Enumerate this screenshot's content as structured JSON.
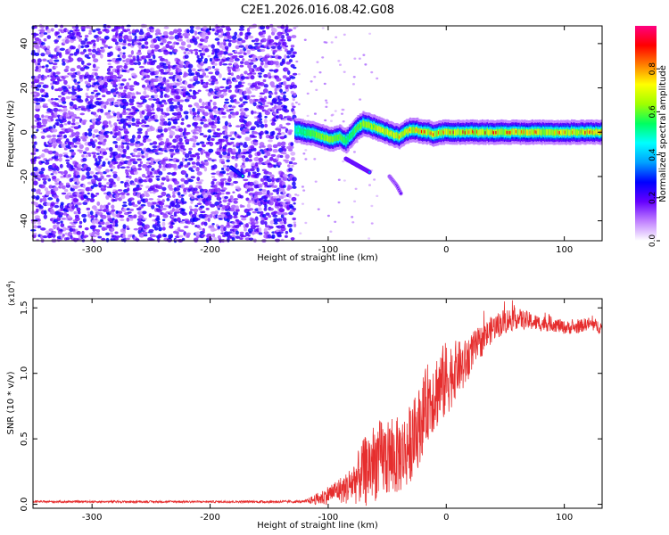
{
  "figure_title": "C2E1.2026.016.08.42.G08",
  "chart_data": [
    {
      "type": "heatmap",
      "title": "",
      "xlabel": "Height of straight line (km)",
      "ylabel": "Frequency (Hz)",
      "xlim": [
        -350,
        132
      ],
      "ylim": [
        -49,
        48
      ],
      "xticks": [
        -300,
        -200,
        -100,
        0,
        100
      ],
      "xtick_labels": [
        "-300",
        "-200",
        "-100",
        "0",
        "100"
      ],
      "yticks": [
        -40,
        -20,
        0,
        20,
        40
      ],
      "ytick_labels": [
        "-40",
        "-20",
        "0",
        "20",
        "40"
      ],
      "colorbar": {
        "label": "Normalized spectral amplitude",
        "range": [
          0,
          1
        ],
        "ticks": [
          0.0,
          0.2,
          0.4,
          0.6,
          0.8
        ],
        "tick_labels": [
          "0.0",
          "0.2",
          "0.4",
          "0.6",
          "0.8"
        ],
        "colors": [
          "#ffffff",
          "#c080ff",
          "#6600ff",
          "#0000ff",
          "#00a0ff",
          "#00ffff",
          "#00ff60",
          "#a0ff00",
          "#ffff00",
          "#ff8000",
          "#ff0000",
          "#ff0080"
        ]
      },
      "noise_region": {
        "x_range": [
          -350,
          -128
        ],
        "y_range": [
          -49,
          48
        ],
        "typical_amplitude": 0.15
      },
      "signal_ridge": {
        "x": [
          -128,
          -120,
          -110,
          -100,
          -95,
          -90,
          -85,
          -80,
          -75,
          -70,
          -65,
          -60,
          -55,
          -50,
          -45,
          -40,
          -35,
          -30,
          -25,
          -20,
          -15,
          -10,
          -5,
          0,
          20,
          50,
          80,
          110,
          132
        ],
        "frequency_hz": [
          1,
          0,
          -1,
          -3,
          -3,
          -2,
          -4,
          -1,
          2,
          4,
          3,
          2,
          1,
          0,
          -1,
          -2,
          0,
          1,
          1,
          0,
          0,
          -1,
          0,
          0,
          0,
          0,
          0,
          0,
          0
        ],
        "peak_amplitude": [
          0.5,
          0.55,
          0.6,
          0.65,
          0.6,
          0.6,
          0.55,
          0.55,
          0.6,
          0.65,
          0.65,
          0.65,
          0.75,
          0.75,
          0.75,
          0.8,
          0.8,
          0.85,
          0.85,
          0.9,
          0.9,
          0.9,
          0.9,
          0.9,
          0.9,
          0.85,
          0.85,
          0.85,
          0.85
        ]
      },
      "features": [
        {
          "name": "lower-branch",
          "x": [
            -85,
            -75,
            -65
          ],
          "frequency_hz": [
            -12,
            -15,
            -18
          ],
          "amplitude": 0.35
        },
        {
          "name": "trailing-branch",
          "x": [
            -48,
            -42,
            -38
          ],
          "frequency_hz": [
            -20,
            -24,
            -28
          ],
          "amplitude": 0.2
        },
        {
          "name": "blob",
          "x": [
            -182,
            -172
          ],
          "frequency_hz": [
            -16,
            -20
          ],
          "amplitude": 0.5
        }
      ]
    },
    {
      "type": "line",
      "title": "",
      "xlabel": "Height of straight line (km)",
      "ylabel": "SNR (10 * v/v)",
      "y_multiplier_label": "(x10",
      "y_multiplier_exponent": "4",
      "y_multiplier_close": ")",
      "xlim": [
        -350,
        132
      ],
      "ylim": [
        -0.03,
        1.57
      ],
      "xticks": [
        -300,
        -200,
        -100,
        0,
        100
      ],
      "xtick_labels": [
        "-300",
        "-200",
        "-100",
        "0",
        "100"
      ],
      "yticks": [
        0.0,
        0.5,
        1.0,
        1.5
      ],
      "ytick_labels": [
        "0.0",
        "0.5",
        "1.0",
        "1.5"
      ],
      "series": [
        {
          "name": "SNR",
          "color": "#e62e2e",
          "envelope": {
            "x": [
              -350,
              -200,
              -120,
              -105,
              -95,
              -85,
              -75,
              -65,
              -55,
              -45,
              -35,
              -25,
              -15,
              -5,
              0,
              5,
              10,
              15,
              20,
              30,
              40,
              50,
              60,
              70,
              80,
              90,
              100,
              110,
              120,
              132
            ],
            "mean": [
              0.02,
              0.02,
              0.02,
              0.05,
              0.1,
              0.12,
              0.2,
              0.3,
              0.35,
              0.35,
              0.4,
              0.55,
              0.8,
              0.9,
              0.95,
              1.0,
              1.05,
              1.05,
              1.15,
              1.25,
              1.35,
              1.4,
              1.42,
              1.4,
              1.38,
              1.38,
              1.35,
              1.35,
              1.38,
              1.35
            ],
            "spread": [
              0.008,
              0.008,
              0.01,
              0.06,
              0.08,
              0.12,
              0.2,
              0.3,
              0.3,
              0.3,
              0.3,
              0.3,
              0.3,
              0.3,
              0.3,
              0.25,
              0.2,
              0.2,
              0.15,
              0.12,
              0.1,
              0.1,
              0.08,
              0.07,
              0.06,
              0.06,
              0.05,
              0.05,
              0.05,
              0.05
            ]
          }
        }
      ]
    }
  ]
}
